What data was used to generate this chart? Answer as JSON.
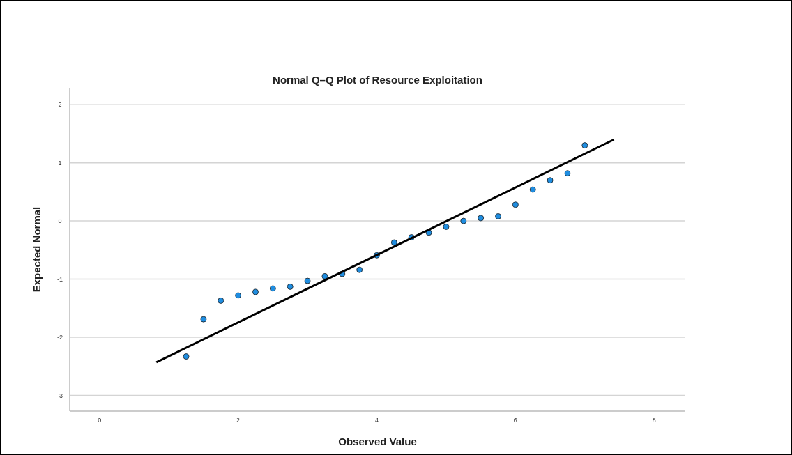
{
  "chart_data": {
    "type": "scatter",
    "title": "Normal Q–Q Plot of Resource Exploitation",
    "xlabel": "Observed Value",
    "ylabel": "Expected Normal",
    "xlim": [
      -0.43,
      8.45
    ],
    "ylim": [
      -3.27,
      2.29
    ],
    "xticks": [
      0,
      2,
      4,
      6,
      8
    ],
    "yticks": [
      -3,
      -2,
      -1,
      0,
      1,
      2
    ],
    "grid": "y",
    "series": [
      {
        "color": "#1f8de0",
        "marker": "circle",
        "x": [
          1.25,
          1.5,
          1.75,
          2.0,
          2.25,
          2.5,
          2.75,
          3.0,
          3.25,
          3.5,
          3.75,
          4.0,
          4.25,
          4.5,
          4.75,
          5.0,
          5.25,
          5.5,
          5.75,
          6.0,
          6.25,
          6.5,
          6.75,
          7.0
        ],
        "values": [
          -2.33,
          -1.69,
          -1.37,
          -1.28,
          -1.22,
          -1.16,
          -1.13,
          -1.03,
          -0.95,
          -0.91,
          -0.84,
          -0.59,
          -0.37,
          -0.28,
          -0.2,
          -0.1,
          0.0,
          0.05,
          0.08,
          0.28,
          0.54,
          0.7,
          0.82,
          1.3
        ]
      },
      {
        "type": "line",
        "color": "#000000",
        "x": [
          0.82,
          7.42
        ],
        "values": [
          -2.43,
          1.4
        ]
      }
    ]
  }
}
